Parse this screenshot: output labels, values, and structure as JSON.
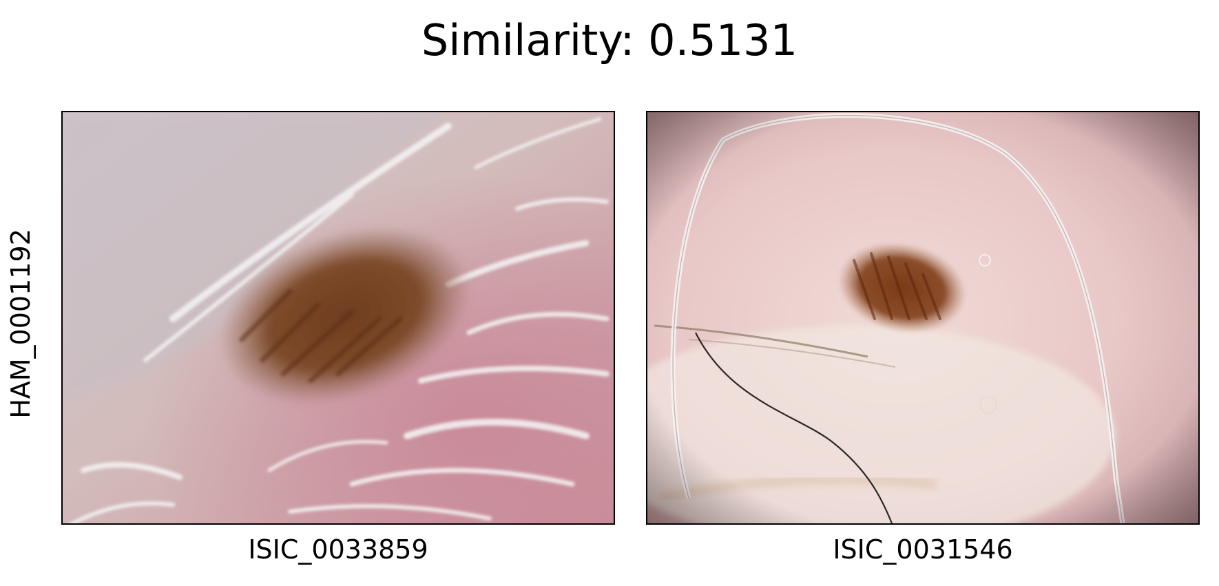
{
  "figure": {
    "title": "Similarity: 0.5131",
    "row_label": "HAM_0001192"
  },
  "panels": [
    {
      "caption": "ISIC_0033859"
    },
    {
      "caption": "ISIC_0031546"
    }
  ]
}
